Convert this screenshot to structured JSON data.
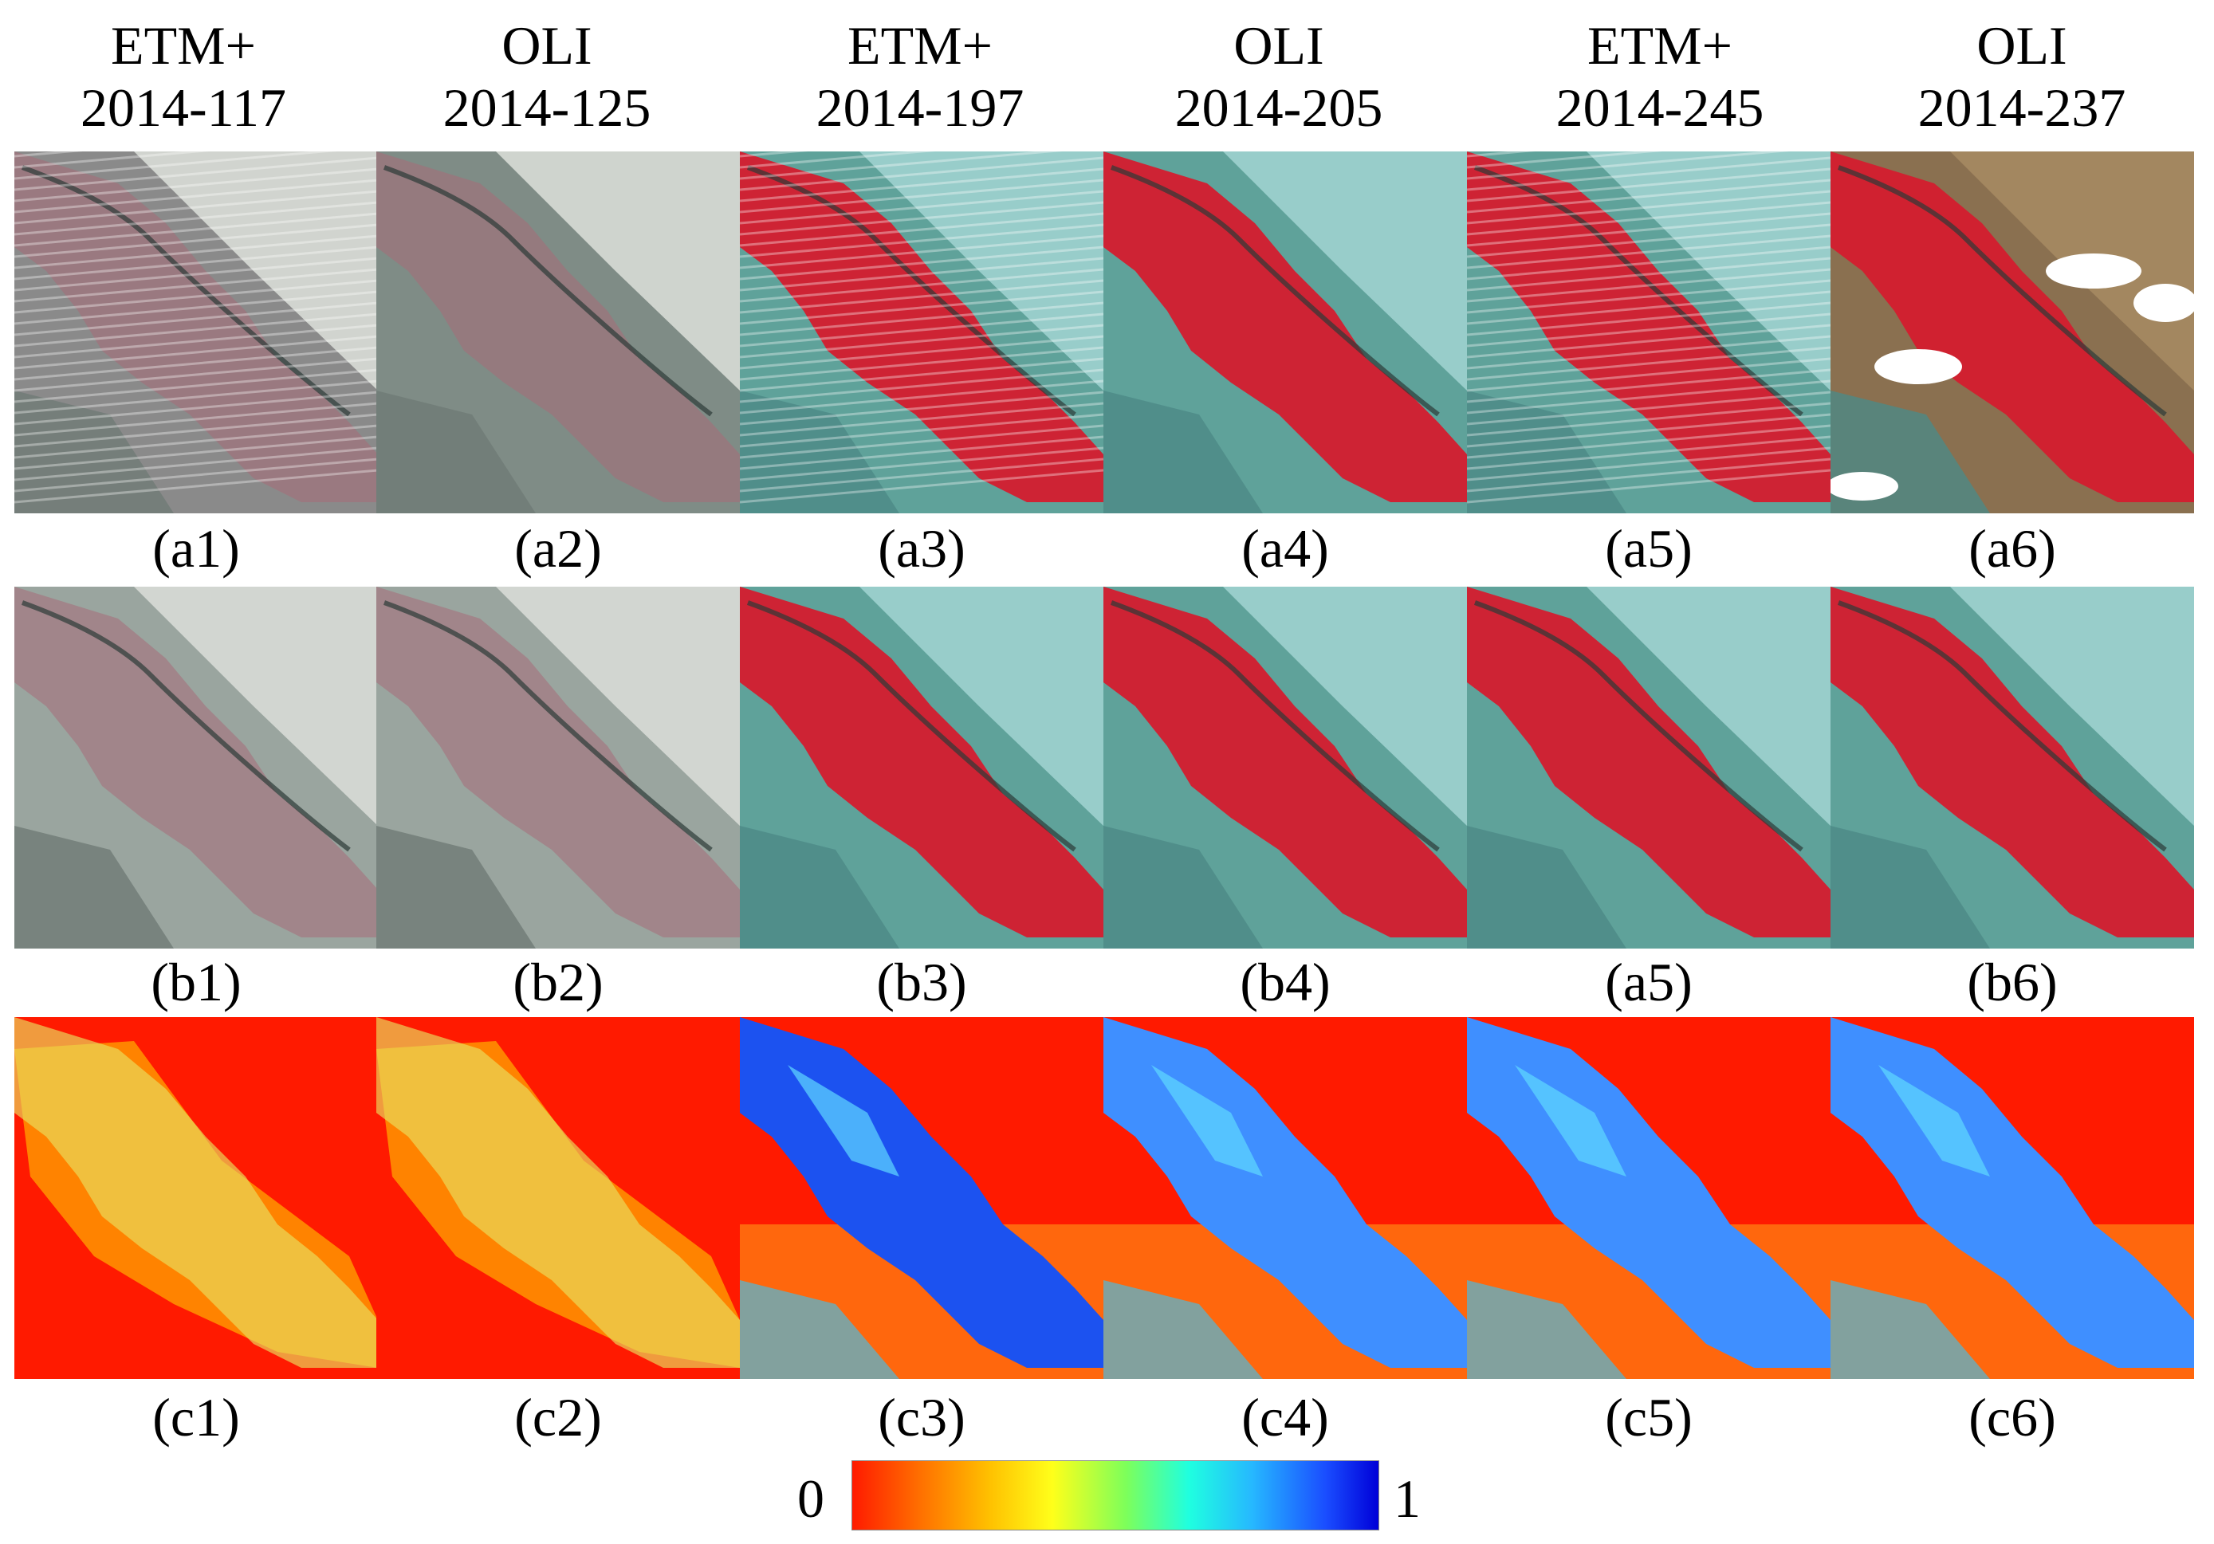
{
  "columns": [
    {
      "sensor": "ETM+",
      "date": "2014-117"
    },
    {
      "sensor": "OLI",
      "date": "2014-125"
    },
    {
      "sensor": "ETM+",
      "date": "2014-197"
    },
    {
      "sensor": "OLI",
      "date": "2014-205"
    },
    {
      "sensor": "ETM+",
      "date": "2014-245"
    },
    {
      "sensor": "OLI",
      "date": "2014-237"
    }
  ],
  "rows": [
    {
      "labels": [
        "(a1)",
        "(a2)",
        "(a3)",
        "(a4)",
        "(a5)",
        "(a6)"
      ]
    },
    {
      "labels": [
        "(b1)",
        "(b2)",
        "(b3)",
        "(b4)",
        "(a5)",
        "(b6)"
      ]
    },
    {
      "labels": [
        "(c1)",
        "(c2)",
        "(c3)",
        "(c4)",
        "(c5)",
        "(c6)"
      ]
    }
  ],
  "colorbar": {
    "min_label": "0",
    "max_label": "1"
  }
}
